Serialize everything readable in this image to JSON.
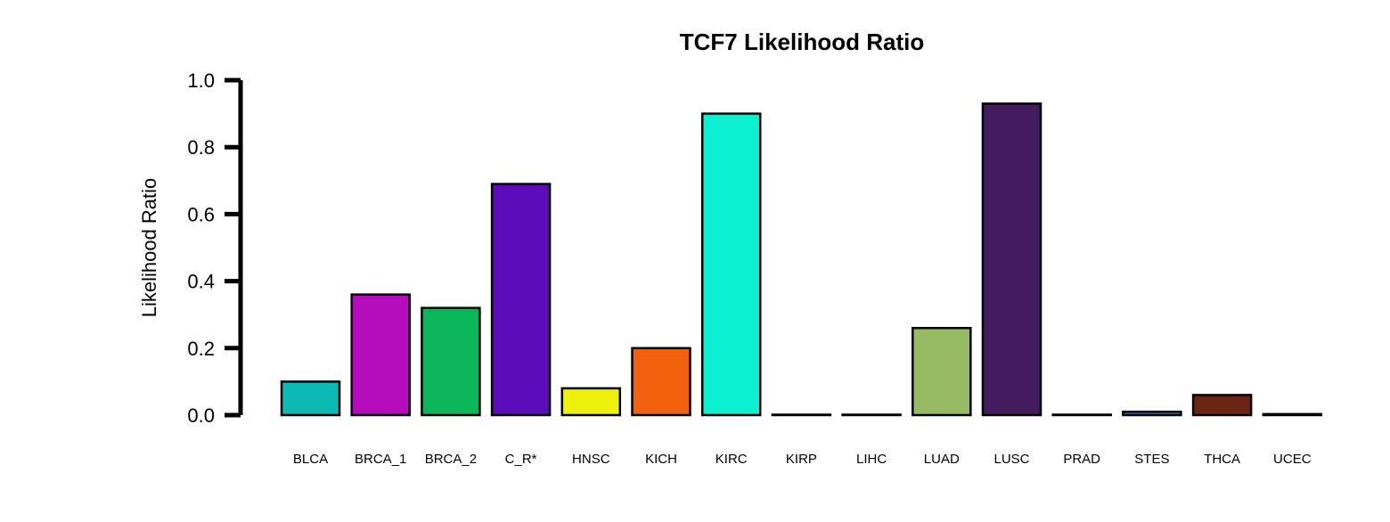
{
  "chart_data": {
    "type": "bar",
    "title": "TCF7 Likelihood Ratio",
    "xlabel": "",
    "ylabel": "Likelihood Ratio",
    "ylim": [
      0,
      1.0
    ],
    "yticks": [
      "0.0",
      "0.2",
      "0.4",
      "0.6",
      "0.8",
      "1.0"
    ],
    "grid": false,
    "categories": [
      "BLCA",
      "BRCA_1",
      "BRCA_2",
      "C_R*",
      "HNSC",
      "KICH",
      "KIRC",
      "KIRP",
      "LIHC",
      "LUAD",
      "LUSC",
      "PRAD",
      "STES",
      "THCA",
      "UCEC"
    ],
    "values": [
      0.1,
      0.36,
      0.32,
      0.69,
      0.08,
      0.2,
      0.9,
      0.0,
      0.0,
      0.26,
      0.93,
      0.0,
      0.01,
      0.06,
      0.003
    ],
    "colors": [
      "#0DB9B4",
      "#B50DBB",
      "#0AB659",
      "#5C0CB9",
      "#EEF10C",
      "#F2610E",
      "#0CF0D2",
      "#1A1A1A",
      "#1A1A1A",
      "#96BB62",
      "#431B5E",
      "#1A1A1A",
      "#3F6FC0",
      "#6B2412",
      "#3A3A3A"
    ]
  }
}
